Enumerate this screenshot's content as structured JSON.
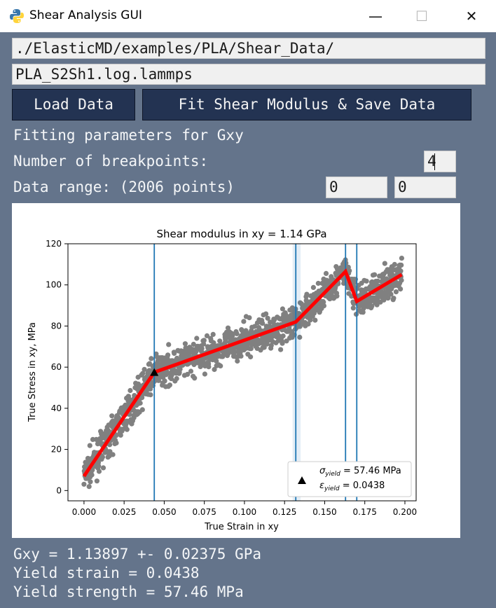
{
  "window": {
    "title": "Shear Analysis GUI",
    "minimize": "—",
    "maximize": "☐",
    "close": "✕"
  },
  "inputs": {
    "folder": "./ElasticMD/examples/PLA/Shear_Data/",
    "file": "PLA_S2Sh1.log.lammps"
  },
  "buttons": {
    "load": "Load Data",
    "fit": "Fit Shear Modulus & Save Data"
  },
  "params": {
    "heading": "Fitting parameters for Gxy",
    "breakpoints_label": "Number of breakpoints:",
    "breakpoints_value": "4",
    "range_label": "Data range: (2006 points)",
    "range_start": "0",
    "range_end": "0"
  },
  "results": {
    "gxy": "Gxy = 1.13897 +- 0.02375 GPa",
    "yield_strain": "Yield strain = 0.0438",
    "yield_strength": "Yield strength = 57.46 MPa"
  },
  "chart_data": {
    "type": "scatter",
    "title": "Shear modulus in xy = 1.14 GPa",
    "xlabel": "True Strain in xy",
    "ylabel": "True Stress in xy, MPa",
    "xlim": [
      -0.01,
      0.207
    ],
    "ylim": [
      -5,
      120
    ],
    "xticks": [
      "0.000",
      "0.025",
      "0.050",
      "0.075",
      "0.100",
      "0.125",
      "0.150",
      "0.175",
      "0.200"
    ],
    "yticks": [
      "0",
      "20",
      "40",
      "60",
      "80",
      "100",
      "120"
    ],
    "scatter_color": "#808080",
    "fit_color": "#ff0000",
    "vline_color": "#1f77b4",
    "fit_line": [
      [
        0.0,
        7
      ],
      [
        0.0438,
        57.5
      ],
      [
        0.132,
        82
      ],
      [
        0.163,
        106.5
      ],
      [
        0.17,
        92
      ],
      [
        0.198,
        105
      ]
    ],
    "breakpoints": [
      0.0438,
      0.132,
      0.163,
      0.17
    ],
    "band": [
      0.13,
      0.135
    ],
    "yield_point": {
      "x": 0.0438,
      "y": 57.46
    },
    "legend": {
      "placement": "lower-right",
      "line1": "σyield = 57.46 MPa",
      "line2": "εyield = 0.0438"
    }
  }
}
